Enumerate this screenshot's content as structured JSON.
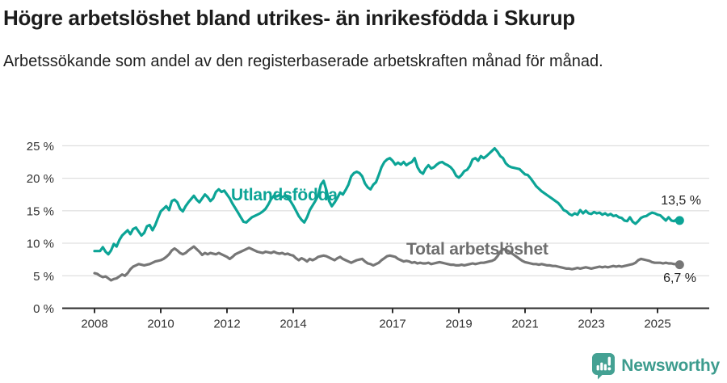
{
  "header": {
    "title": "Högre arbetslöshet bland utrikes- än inrikesfödda i Skurup",
    "subtitle": "Arbetssökande som andel av den registerbaserade arbetskraften månad för månad."
  },
  "chart_data": {
    "type": "line",
    "frequency": "monthly",
    "x_start": {
      "year": 2008,
      "month": 1
    },
    "x_end": {
      "year": 2025,
      "month": 9
    },
    "ylim": [
      0,
      26.5
    ],
    "grid": "horizontal",
    "y_ticks": [
      0,
      5,
      10,
      15,
      20,
      25
    ],
    "y_tick_labels": [
      "0 %",
      "5 %",
      "10 %",
      "15 %",
      "20 %",
      "25 %"
    ],
    "x_tick_years": [
      2008,
      2010,
      2012,
      2014,
      2017,
      2019,
      2021,
      2023,
      2025
    ],
    "series": [
      {
        "name": "Utlandsfödda",
        "color": "#0ca496",
        "end_label": "13,5 %",
        "last_value": 13.5,
        "values": [
          8.8,
          8.8,
          8.8,
          9.4,
          8.7,
          8.3,
          8.9,
          9.9,
          9.5,
          10.5,
          11.2,
          11.6,
          12.0,
          11.4,
          12.2,
          12.4,
          11.8,
          11.2,
          11.6,
          12.6,
          12.8,
          12.0,
          12.8,
          13.9,
          14.9,
          15.3,
          15.7,
          15.1,
          16.5,
          16.7,
          16.3,
          15.3,
          14.9,
          15.7,
          16.3,
          16.8,
          17.3,
          16.7,
          16.3,
          16.9,
          17.5,
          17.1,
          16.5,
          16.9,
          17.9,
          18.3,
          17.9,
          18.1,
          17.5,
          16.9,
          16.1,
          15.4,
          14.7,
          14.0,
          13.3,
          13.2,
          13.6,
          14.0,
          14.2,
          14.4,
          14.6,
          14.9,
          15.3,
          16.0,
          16.8,
          17.3,
          17.2,
          17.4,
          17.1,
          17.3,
          17.0,
          16.5,
          15.8,
          15.0,
          14.2,
          13.6,
          13.2,
          14.0,
          15.1,
          15.8,
          16.5,
          17.3,
          19.0,
          19.6,
          18.2,
          16.5,
          15.7,
          16.3,
          17.0,
          17.8,
          17.5,
          18.2,
          19.0,
          20.3,
          20.8,
          21.0,
          20.8,
          20.3,
          19.2,
          18.6,
          18.3,
          19.0,
          19.4,
          20.5,
          21.7,
          22.5,
          22.9,
          23.1,
          22.7,
          22.1,
          22.4,
          22.1,
          22.5,
          22.0,
          22.3,
          22.5,
          23.1,
          21.7,
          21.0,
          20.7,
          21.5,
          22.0,
          21.5,
          21.7,
          22.1,
          22.4,
          22.5,
          22.2,
          22.0,
          21.7,
          21.2,
          20.4,
          20.1,
          20.5,
          21.1,
          21.3,
          21.9,
          22.9,
          23.1,
          22.7,
          23.4,
          23.1,
          23.4,
          23.8,
          24.2,
          24.6,
          24.1,
          23.4,
          23.1,
          22.3,
          21.9,
          21.7,
          21.6,
          21.5,
          21.4,
          21.0,
          20.6,
          20.5,
          20.0,
          19.4,
          18.8,
          18.4,
          18.0,
          17.7,
          17.4,
          17.1,
          16.8,
          16.5,
          16.2,
          15.7,
          15.1,
          14.9,
          14.5,
          14.3,
          14.6,
          14.4,
          15.1,
          14.6,
          15.0,
          14.6,
          14.5,
          14.8,
          14.6,
          14.7,
          14.4,
          14.6,
          14.3,
          14.5,
          14.2,
          14.3,
          14.0,
          13.9,
          13.5,
          13.4,
          14.0,
          13.3,
          13.0,
          13.4,
          13.9,
          14.1,
          14.2,
          14.5,
          14.7,
          14.6,
          14.4,
          14.3,
          13.9,
          13.5,
          14.0,
          13.5,
          13.4,
          13.7,
          13.5
        ]
      },
      {
        "name": "Total arbetslöshet",
        "color": "#767676",
        "end_label": "6,7 %",
        "last_value": 6.7,
        "values": [
          5.4,
          5.3,
          5.0,
          4.8,
          4.9,
          4.6,
          4.3,
          4.5,
          4.6,
          4.9,
          5.2,
          5.0,
          5.4,
          6.0,
          6.4,
          6.6,
          6.8,
          6.7,
          6.6,
          6.7,
          6.8,
          7.0,
          7.2,
          7.3,
          7.4,
          7.6,
          7.9,
          8.3,
          8.9,
          9.2,
          8.9,
          8.5,
          8.3,
          8.5,
          8.9,
          9.2,
          9.5,
          9.1,
          8.7,
          8.2,
          8.5,
          8.3,
          8.5,
          8.4,
          8.3,
          8.5,
          8.3,
          8.1,
          7.9,
          7.6,
          7.9,
          8.3,
          8.5,
          8.7,
          8.9,
          9.1,
          9.3,
          9.1,
          8.9,
          8.7,
          8.6,
          8.5,
          8.7,
          8.6,
          8.5,
          8.7,
          8.5,
          8.4,
          8.5,
          8.3,
          8.4,
          8.2,
          8.1,
          7.7,
          7.4,
          7.7,
          7.5,
          7.2,
          7.6,
          7.4,
          7.6,
          7.9,
          8.0,
          8.1,
          8.0,
          7.8,
          7.6,
          7.4,
          7.7,
          7.9,
          7.6,
          7.4,
          7.2,
          7.0,
          7.2,
          7.4,
          7.5,
          7.6,
          7.2,
          6.9,
          6.8,
          6.6,
          6.8,
          7.0,
          7.4,
          7.7,
          8.0,
          8.1,
          8.0,
          7.9,
          7.6,
          7.4,
          7.2,
          7.3,
          7.2,
          7.0,
          7.1,
          6.9,
          7.0,
          6.9,
          6.9,
          7.0,
          6.8,
          6.9,
          7.0,
          7.1,
          7.0,
          6.9,
          6.8,
          6.7,
          6.7,
          6.6,
          6.6,
          6.7,
          6.6,
          6.7,
          6.8,
          6.9,
          6.8,
          6.9,
          7.0,
          7.0,
          7.1,
          7.2,
          7.3,
          7.5,
          8.0,
          8.7,
          9.1,
          9.0,
          8.8,
          8.5,
          8.2,
          7.9,
          7.6,
          7.3,
          7.1,
          7.0,
          6.9,
          6.8,
          6.8,
          6.7,
          6.8,
          6.7,
          6.6,
          6.6,
          6.5,
          6.5,
          6.4,
          6.3,
          6.2,
          6.1,
          6.1,
          6.0,
          6.1,
          6.2,
          6.1,
          6.2,
          6.3,
          6.2,
          6.1,
          6.2,
          6.3,
          6.4,
          6.3,
          6.4,
          6.3,
          6.4,
          6.5,
          6.4,
          6.5,
          6.4,
          6.5,
          6.6,
          6.7,
          6.8,
          7.0,
          7.4,
          7.6,
          7.5,
          7.4,
          7.3,
          7.1,
          7.0,
          7.0,
          7.0,
          6.9,
          7.0,
          6.9,
          6.9,
          6.8,
          6.8,
          6.7
        ]
      }
    ]
  },
  "colors": {
    "accent_teal": "#0ca496",
    "line_gray": "#767676",
    "grid": "#d8d8d8",
    "axis": "#2e2e2e",
    "tick_text": "#333333",
    "brand_teal": "#3d9c8e"
  },
  "footer": {
    "brand": "Newsworthy"
  }
}
